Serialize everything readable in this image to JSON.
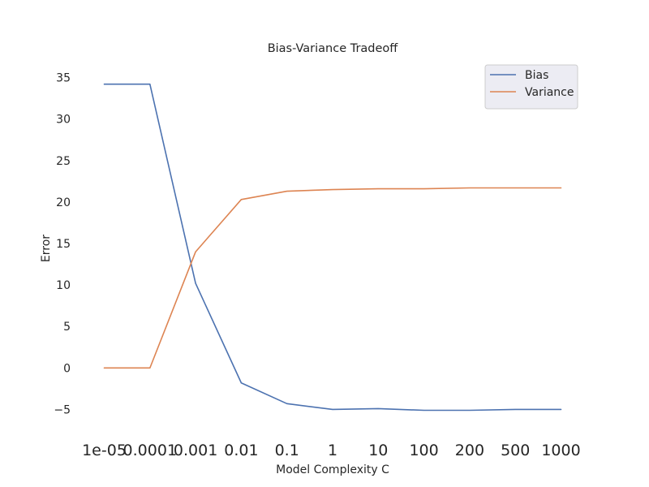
{
  "chart_data": {
    "type": "line",
    "title": "Bias-Variance Tradeoff",
    "xlabel": "Model Complexity C",
    "ylabel": "Error",
    "categories": [
      "1e-05",
      "0.0001",
      "0.001",
      "0.01",
      "0.1",
      "1",
      "10",
      "100",
      "200",
      "500",
      "1000"
    ],
    "yticks": [
      -5,
      0,
      5,
      10,
      15,
      20,
      25,
      30,
      35
    ],
    "ylim": [
      -7.3,
      37.3
    ],
    "grid": false,
    "legend_position": "top-right",
    "series": [
      {
        "name": "Bias",
        "color": "#4c72b0",
        "values": [
          34.2,
          34.2,
          10.2,
          -1.8,
          -4.3,
          -5.0,
          -4.9,
          -5.1,
          -5.1,
          -5.0,
          -5.0
        ]
      },
      {
        "name": "Variance",
        "color": "#dd8452",
        "values": [
          0.0,
          0.0,
          14.0,
          20.3,
          21.3,
          21.5,
          21.6,
          21.6,
          21.7,
          21.7,
          21.7
        ]
      }
    ]
  }
}
